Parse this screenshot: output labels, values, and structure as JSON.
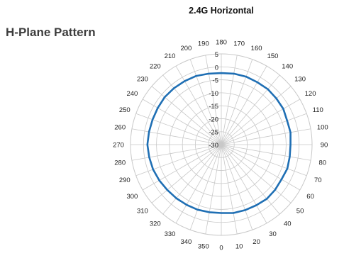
{
  "page": {
    "title": "H-Plane Pattern"
  },
  "chart_data": {
    "type": "line",
    "subtype": "polar",
    "title": "2.4G Horizontal",
    "angle_ticks": [
      0,
      10,
      20,
      30,
      40,
      50,
      60,
      70,
      80,
      90,
      100,
      110,
      120,
      130,
      140,
      150,
      160,
      170,
      180,
      190,
      200,
      210,
      220,
      230,
      240,
      250,
      260,
      270,
      280,
      290,
      300,
      310,
      320,
      330,
      340,
      350
    ],
    "angle_labels": [
      "0",
      "10",
      "20",
      "30",
      "40",
      "50",
      "60",
      "70",
      "80",
      "90",
      "100",
      "110",
      "120",
      "130",
      "140",
      "150",
      "160",
      "170",
      "180",
      "190",
      "200",
      "210",
      "220",
      "230",
      "240",
      "250",
      "260",
      "270",
      "280",
      "290",
      "300",
      "310",
      "320",
      "330",
      "340",
      "350"
    ],
    "angle_zero_location": "bottom",
    "angle_direction": "counterclockwise",
    "radial_range": [
      -30,
      5
    ],
    "radial_ticks": [
      5,
      0,
      -5,
      -10,
      -15,
      -20,
      -25,
      -30
    ],
    "radial_labels": [
      "5",
      "0",
      "-5",
      "-10",
      "-15",
      "-20",
      "-25",
      "-30"
    ],
    "grid": true,
    "series": [
      {
        "color": "#1F6FB4",
        "theta": [
          0,
          10,
          20,
          30,
          40,
          50,
          60,
          70,
          80,
          90,
          100,
          110,
          120,
          130,
          140,
          150,
          160,
          170,
          180,
          190,
          200,
          210,
          220,
          230,
          240,
          250,
          260,
          270,
          280,
          290,
          300,
          310,
          320,
          330,
          340,
          350
        ],
        "r": [
          -3.6,
          -3.2,
          -3.1,
          -3.0,
          -2.7,
          -2.9,
          -3.2,
          -2.9,
          -3.2,
          -3.3,
          -2.9,
          -3.0,
          -2.4,
          -2.3,
          -2.1,
          -2.2,
          -2.1,
          -2.2,
          -2.4,
          -2.2,
          -1.8,
          -1.7,
          -1.6,
          -1.5,
          -1.7,
          -1.8,
          -1.7,
          -1.5,
          -1.8,
          -2.0,
          -2.4,
          -2.8,
          -3.0,
          -3.2,
          -3.3,
          -3.5
        ]
      }
    ]
  }
}
